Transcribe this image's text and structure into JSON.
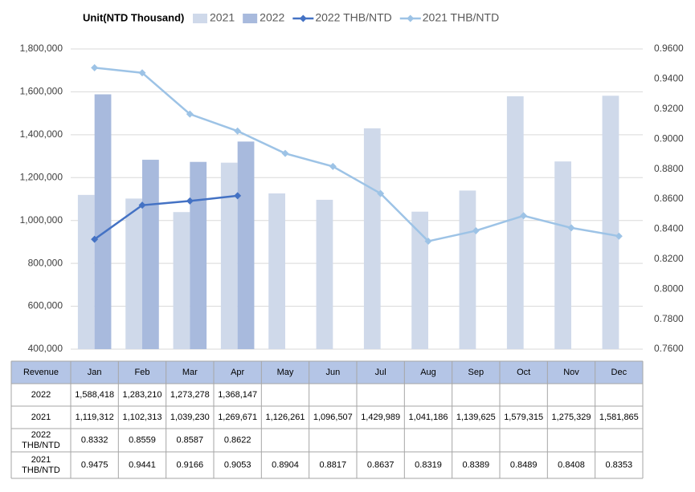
{
  "chart_data": {
    "type": "bar_line_table",
    "unit": "Unit(NTD Thousand)",
    "table_header": "Revenue",
    "categories": [
      "Jan",
      "Feb",
      "Mar",
      "Apr",
      "May",
      "Jun",
      "Jul",
      "Aug",
      "Sep",
      "Oct",
      "Nov",
      "Dec"
    ],
    "ylim": [
      400000,
      1800000
    ],
    "yticks": [
      {
        "value": 400000,
        "label": "400,000"
      },
      {
        "value": 600000,
        "label": "600,000"
      },
      {
        "value": 800000,
        "label": "800,000"
      },
      {
        "value": 1000000,
        "label": "1,000,000"
      },
      {
        "value": 1200000,
        "label": "1,200,000"
      },
      {
        "value": 1400000,
        "label": "1,400,000"
      },
      {
        "value": 1600000,
        "label": "1,600,000"
      },
      {
        "value": 1800000,
        "label": "1,800,000"
      }
    ],
    "y2lim": [
      0.76,
      0.96
    ],
    "y2ticks": [
      {
        "value": 0.76,
        "label": "0.7600"
      },
      {
        "value": 0.78,
        "label": "0.7800"
      },
      {
        "value": 0.8,
        "label": "0.8000"
      },
      {
        "value": 0.82,
        "label": "0.8200"
      },
      {
        "value": 0.84,
        "label": "0.8400"
      },
      {
        "value": 0.86,
        "label": "0.8600"
      },
      {
        "value": 0.88,
        "label": "0.8800"
      },
      {
        "value": 0.9,
        "label": "0.9000"
      },
      {
        "value": 0.92,
        "label": "0.9200"
      },
      {
        "value": 0.94,
        "label": "0.9400"
      },
      {
        "value": 0.96,
        "label": "0.9600"
      }
    ],
    "grid": true,
    "series": [
      {
        "name": "2021",
        "type": "bar",
        "color": "#cfd9ea",
        "values": [
          1119312,
          1102313,
          1039230,
          1269671,
          1126261,
          1096507,
          1429989,
          1041186,
          1139625,
          1579315,
          1275329,
          1581865
        ],
        "value_labels": [
          "1,119,312",
          "1,102,313",
          "1,039,230",
          "1,269,671",
          "1,126,261",
          "1,096,507",
          "1,429,989",
          "1,041,186",
          "1,139,625",
          "1,579,315",
          "1,275,329",
          "1,581,865"
        ]
      },
      {
        "name": "2022",
        "type": "bar",
        "color": "#a8badd",
        "values": [
          1588418,
          1283210,
          1273278,
          1368147,
          null,
          null,
          null,
          null,
          null,
          null,
          null,
          null
        ],
        "value_labels": [
          "1,588,418",
          "1,283,210",
          "1,273,278",
          "1,368,147",
          null,
          null,
          null,
          null,
          null,
          null,
          null,
          null
        ]
      },
      {
        "name": "2022 THB/NTD",
        "type": "line",
        "axis": "y2",
        "color": "#4472c4",
        "values": [
          0.8332,
          0.8559,
          0.8587,
          0.8622,
          null,
          null,
          null,
          null,
          null,
          null,
          null,
          null
        ]
      },
      {
        "name": "2021 THB/NTD",
        "type": "line",
        "axis": "y2",
        "color": "#9dc3e6",
        "values": [
          0.9475,
          0.9441,
          0.9166,
          0.9053,
          0.8904,
          0.8817,
          0.8637,
          0.8319,
          0.8389,
          0.8489,
          0.8408,
          0.8353
        ]
      }
    ],
    "table_rows": [
      1,
      0,
      2,
      3
    ]
  }
}
